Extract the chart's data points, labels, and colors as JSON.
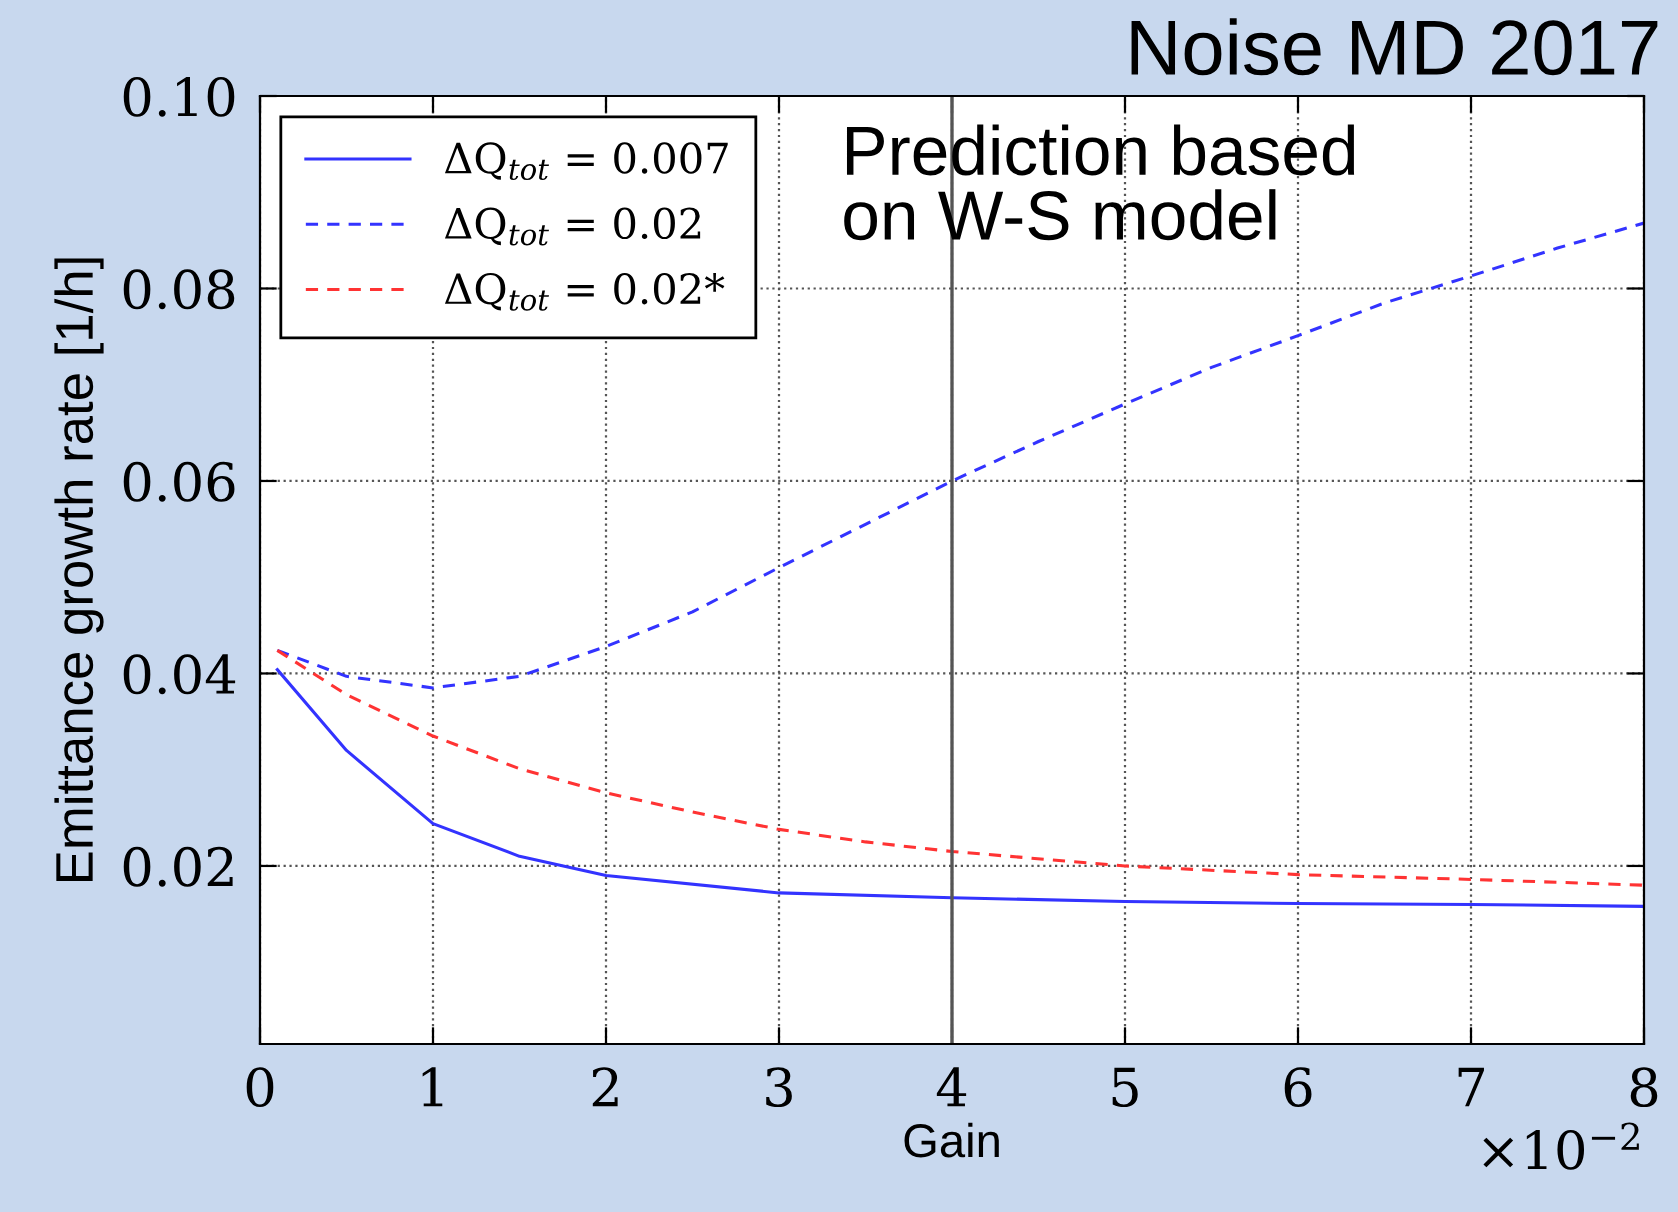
{
  "chart_data": {
    "type": "line",
    "title": "Noise MD 2017",
    "xlabel": "Gain",
    "ylabel": "Emittance growth rate [1/h]",
    "annotations": [
      "Prediction based\non W-S model",
      "×10$^{−2}$"
    ],
    "xlim": [
      0,
      8
    ],
    "xticks": [
      0,
      1,
      2,
      3,
      4,
      5,
      6,
      7,
      8
    ],
    "ylim": [
      0.0015,
      0.1
    ],
    "yticks": [
      {
        "value": 0.02,
        "label": "0.02"
      },
      {
        "value": 0.04,
        "label": "0.04"
      },
      {
        "value": 0.06,
        "label": "0.06"
      },
      {
        "value": 0.08,
        "label": "0.08"
      },
      {
        "value": 0.1,
        "label": "0.10"
      }
    ],
    "grid": true,
    "legend": "top left",
    "ref_lines": [
      {
        "axis": "x",
        "value": 4,
        "color": "#555555",
        "line_style": "solid"
      }
    ],
    "series": [
      {
        "name": "ΔQ$_{tot}$ = 0.007",
        "color": "#3333ff",
        "line_style": "solid",
        "x": [
          0.1,
          0.5,
          1,
          1.5,
          2,
          3,
          4,
          5,
          6,
          7,
          8
        ],
        "values": [
          0.0404,
          0.032,
          0.0244,
          0.021,
          0.019,
          0.0172,
          0.0167,
          0.0163,
          0.0161,
          0.016,
          0.0158
        ]
      },
      {
        "name": "ΔQ$_{tot}$ = 0.02",
        "color": "#3333ff",
        "line_style": "dashed",
        "x": [
          0.1,
          0.5,
          1,
          1.5,
          2,
          2.5,
          3,
          3.5,
          4,
          4.5,
          5,
          5.5,
          6,
          6.5,
          7,
          7.5,
          8
        ],
        "values": [
          0.0424,
          0.0397,
          0.0385,
          0.0397,
          0.0428,
          0.0464,
          0.051,
          0.0555,
          0.06,
          0.0641,
          0.068,
          0.0718,
          0.0751,
          0.0785,
          0.0813,
          0.0842,
          0.0868
        ]
      },
      {
        "name": "ΔQ$_{tot}$ = 0.02*",
        "color": "#ff3333",
        "line_style": "dashed",
        "x": [
          0.1,
          0.5,
          1,
          1.5,
          2,
          2.5,
          3,
          3.5,
          4,
          5,
          6,
          7,
          8
        ],
        "values": [
          0.0424,
          0.0378,
          0.0335,
          0.0301,
          0.0276,
          0.0256,
          0.0238,
          0.0225,
          0.0215,
          0.02,
          0.0191,
          0.0186,
          0.018
        ]
      }
    ]
  }
}
